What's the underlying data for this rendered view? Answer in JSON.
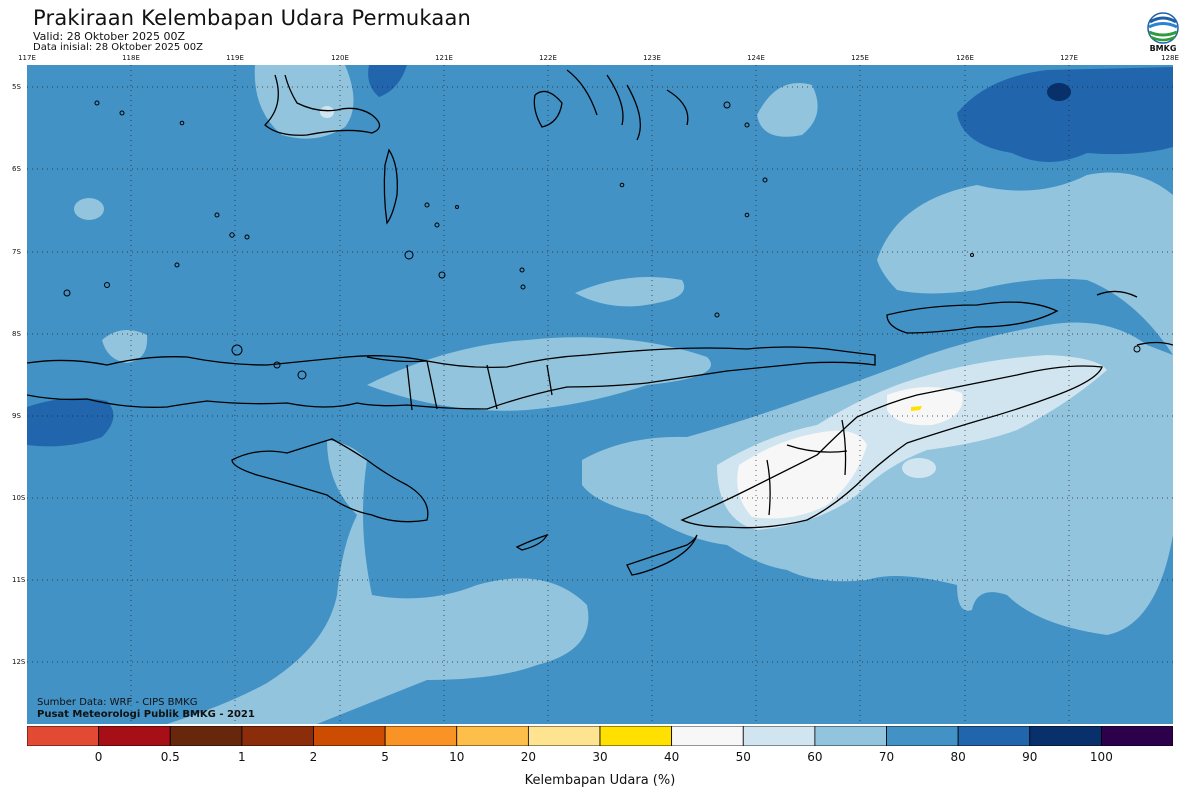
{
  "header": {
    "title": "Prakiraan Kelembapan Udara Permukaan",
    "valid": "Valid: 28 Oktober 2025 00Z",
    "initial": "Data inisial: 28 Oktober 2025 00Z",
    "logo_text": "BMKG"
  },
  "map": {
    "lon_labels": [
      "117E",
      "118E",
      "119E",
      "120E",
      "121E",
      "122E",
      "123E",
      "124E",
      "125E",
      "126E",
      "127E",
      "128E"
    ],
    "lat_labels": [
      "5S",
      "6S",
      "7S",
      "8S",
      "9S",
      "10S",
      "11S",
      "12S"
    ],
    "colors": {
      "humid_80_90": "#4292c6",
      "humid_90_100": "#2166ac",
      "humid_100": "#08306b",
      "humid_70_80": "#92c4de",
      "humid_60_70": "#d1e5f0",
      "humid_50_60": "#f7f7f7",
      "humid_30_40": "#ffe000",
      "land_outline": "#000000"
    }
  },
  "credits": {
    "source": "Sumber Data: WRF - CIPS BMKG",
    "publisher": "Pusat Meteorologi Publik BMKG - 2021"
  },
  "legend": {
    "title": "Kelembapan Udara (%)",
    "labels": [
      "0",
      "0.5",
      "1",
      "2",
      "5",
      "10",
      "20",
      "30",
      "40",
      "50",
      "60",
      "70",
      "80",
      "90",
      "100"
    ],
    "colors": [
      "#e34a33",
      "#a50f15",
      "#67270c",
      "#8b2c0a",
      "#cc4c02",
      "#f99325",
      "#fdbe4a",
      "#fee391",
      "#ffe000",
      "#f7f7f7",
      "#d1e5f0",
      "#92c4de",
      "#4292c6",
      "#2166ac",
      "#08306b",
      "#2d004b"
    ]
  }
}
